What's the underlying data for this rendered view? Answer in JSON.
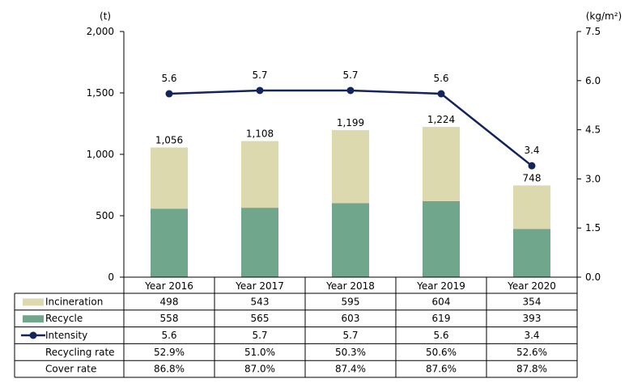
{
  "chart_data": {
    "type": "bar",
    "stacked": true,
    "categories": [
      "Year 2016",
      "Year 2017",
      "Year 2018",
      "Year 2019",
      "Year 2020"
    ],
    "series": [
      {
        "name": "Recycle",
        "values": [
          558,
          565,
          603,
          619,
          393
        ],
        "color": "#6fa68c"
      },
      {
        "name": "Incineration",
        "values": [
          498,
          543,
          595,
          604,
          354
        ],
        "color": "#ddd9ae"
      }
    ],
    "totals": [
      1056,
      1108,
      1199,
      1224,
      748
    ],
    "total_labels": [
      "1,056",
      "1,108",
      "1,199",
      "1,224",
      "748"
    ],
    "line_series": {
      "name": "Intensity",
      "values": [
        5.6,
        5.7,
        5.7,
        5.6,
        3.4
      ],
      "labels": [
        "5.6",
        "5.7",
        "5.7",
        "5.6",
        "3.4"
      ],
      "color": "#14255c"
    },
    "ylim": [
      0,
      2000
    ],
    "y_ticks": [
      "2,000",
      "1,500",
      "1,000",
      "500",
      "0"
    ],
    "y_tick_values": [
      2000,
      1500,
      1000,
      500,
      0
    ],
    "y_unit": "(t)",
    "y2lim": [
      0,
      7.5
    ],
    "y2_ticks": [
      "7.5",
      "6.0",
      "4.5",
      "3.0",
      "1.5",
      "0.0"
    ],
    "y2_tick_values": [
      7.5,
      6.0,
      4.5,
      3.0,
      1.5,
      0.0
    ],
    "y2_unit": "(kg/m²)",
    "table": {
      "rows": [
        {
          "label": "Incineration",
          "swatch": "box",
          "color": "#ddd9ae",
          "values": [
            "498",
            "543",
            "595",
            "604",
            "354"
          ]
        },
        {
          "label": "Recycle",
          "swatch": "box",
          "color": "#6fa68c",
          "values": [
            "558",
            "565",
            "603",
            "619",
            "393"
          ]
        },
        {
          "label": "Intensity",
          "swatch": "line",
          "color": "#14255c",
          "values": [
            "5.6",
            "5.7",
            "5.7",
            "5.6",
            "3.4"
          ]
        },
        {
          "label": "Recycling rate",
          "swatch": "none",
          "values": [
            "52.9%",
            "51.0%",
            "50.3%",
            "50.6%",
            "52.6%"
          ]
        },
        {
          "label": "Cover rate",
          "swatch": "none",
          "values": [
            "86.8%",
            "87.0%",
            "87.4%",
            "87.6%",
            "87.8%"
          ]
        }
      ]
    }
  }
}
